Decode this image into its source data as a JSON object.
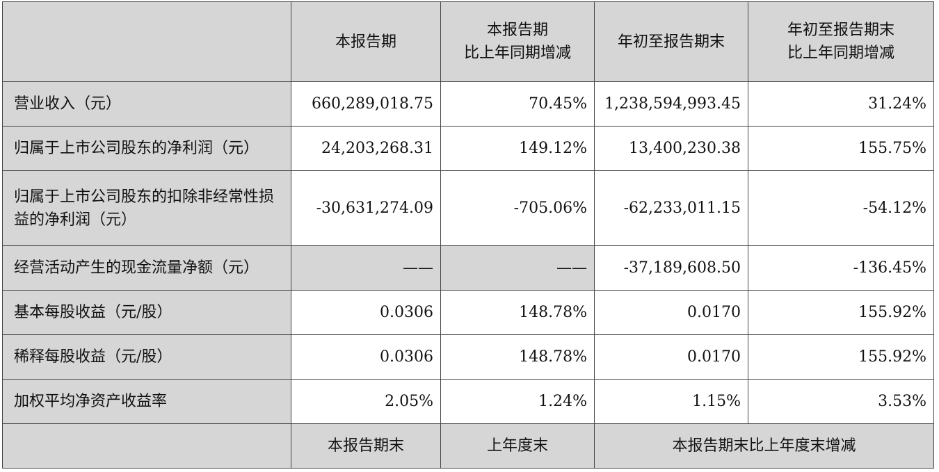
{
  "header": {
    "col1": "本报告期",
    "col2_line1": "本报告期",
    "col2_line2": "比上年同期增减",
    "col3": "年初至报告期末",
    "col4_line1": "年初至报告期末",
    "col4_line2": "比上年同期增减"
  },
  "rows": [
    {
      "label": "营业收入（元）",
      "v1": "660,289,018.75",
      "v2": "70.45%",
      "v3": "1,238,594,993.45",
      "v4": "31.24%"
    },
    {
      "label": "归属于上市公司股东的净利润（元）",
      "v1": "24,203,268.31",
      "v2": "149.12%",
      "v3": "13,400,230.38",
      "v4": "155.75%"
    },
    {
      "label": "归属于上市公司股东的扣除非经常性损益的净利润（元）",
      "v1": "-30,631,274.09",
      "v2": "-705.06%",
      "v3": "-62,233,011.15",
      "v4": "-54.12%"
    },
    {
      "label": "经营活动产生的现金流量净额（元）",
      "v1": "——",
      "v2": "——",
      "v3": "-37,189,608.50",
      "v4": "-136.45%"
    },
    {
      "label": "基本每股收益（元/股）",
      "v1": "0.0306",
      "v2": "148.78%",
      "v3": "0.0170",
      "v4": "155.92%"
    },
    {
      "label": "稀释每股收益（元/股）",
      "v1": "0.0306",
      "v2": "148.78%",
      "v3": "0.0170",
      "v4": "155.92%"
    },
    {
      "label": "加权平均净资产收益率",
      "v1": "2.05%",
      "v2": "1.24%",
      "v3": "1.15%",
      "v4": "3.53%"
    }
  ],
  "footer": {
    "col1": "本报告期末",
    "col2": "上年度末",
    "col34": "本报告期末比上年度末增减"
  }
}
